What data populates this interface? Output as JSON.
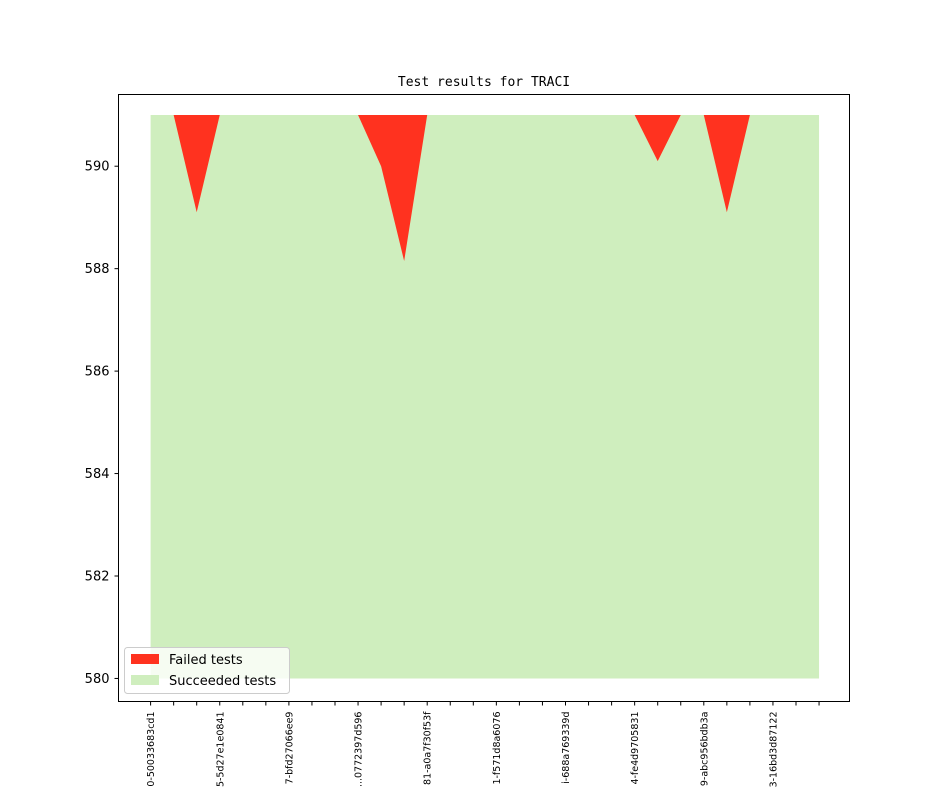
{
  "chart_data": {
    "type": "area",
    "title": "Test results for TRACI",
    "xlabel": "",
    "ylabel": "",
    "ylim": [
      579.55,
      591.4
    ],
    "yticks": [
      580,
      582,
      584,
      586,
      588,
      590
    ],
    "x_count": 30,
    "xtick_labels": [
      "0-50033683cd1",
      "",
      "",
      "5-5d27e1e0841",
      "",
      "",
      "7-bfd27066ee9",
      "",
      "",
      "...0772397d596",
      "",
      "",
      "81-a0a7f30f53f",
      "",
      "",
      "1-f571d8a6076",
      "",
      "",
      "i-688a769339d",
      "",
      "",
      "4-fe4d9705831",
      "",
      "",
      "9-abc956bdb3a",
      "",
      "",
      "3-16bd3d87122",
      "",
      ""
    ],
    "series": [
      {
        "name": "Failed tests",
        "color": "#ff321f",
        "lower": [
          591,
          591,
          589.1,
          591,
          591,
          591,
          591,
          591,
          591,
          591,
          590,
          588.15,
          591,
          591,
          591,
          591,
          591,
          591,
          591,
          591,
          591,
          591,
          590.1,
          591,
          591,
          589.1,
          591,
          591,
          591,
          591
        ],
        "upper": [
          591,
          591,
          591,
          591,
          591,
          591,
          591,
          591,
          591,
          591,
          591,
          591,
          591,
          591,
          591,
          591,
          591,
          591,
          591,
          591,
          591,
          591,
          591,
          591,
          591,
          591,
          591,
          591,
          591,
          591
        ]
      },
      {
        "name": "Succeeded tests",
        "color": "#cfeebe",
        "lower": [
          580,
          580,
          580,
          580,
          580,
          580,
          580,
          580,
          580,
          580,
          580,
          580,
          580,
          580,
          580,
          580,
          580,
          580,
          580,
          580,
          580,
          580,
          580,
          580,
          580,
          580,
          580,
          580,
          580,
          580
        ],
        "upper": [
          591,
          591,
          591,
          591,
          591,
          591,
          591,
          591,
          591,
          591,
          591,
          591,
          591,
          591,
          591,
          591,
          591,
          591,
          591,
          591,
          591,
          591,
          591,
          591,
          591,
          591,
          591,
          591,
          591,
          591
        ]
      }
    ],
    "legend": {
      "position": "lower-left",
      "entries": [
        "Failed tests",
        "Succeeded tests"
      ]
    },
    "grid": false
  }
}
